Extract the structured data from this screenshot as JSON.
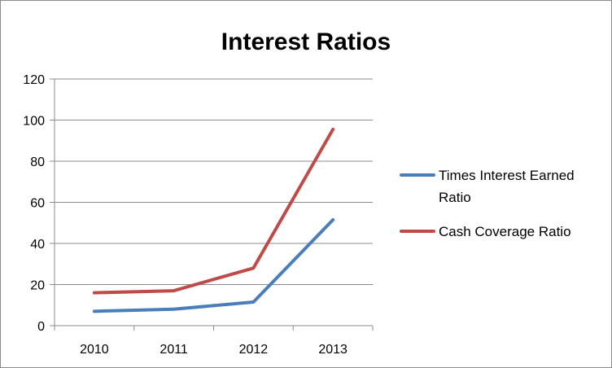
{
  "chart_data": {
    "type": "line",
    "title": "Interest Ratios",
    "xlabel": "",
    "ylabel": "",
    "categories": [
      "2010",
      "2011",
      "2012",
      "2013"
    ],
    "ylim": [
      0,
      120
    ],
    "yticks": [
      0,
      20,
      40,
      60,
      80,
      100,
      120
    ],
    "grid": true,
    "legend": "right",
    "series": [
      {
        "name": "Times Interest Earned Ratio",
        "legend_lines": [
          "Times Interest Earned",
          "Ratio"
        ],
        "color": "#4a7ebb",
        "values": [
          7,
          8,
          11.5,
          51.5
        ]
      },
      {
        "name": "Cash Coverage Ratio",
        "legend_lines": [
          "Cash Coverage Ratio"
        ],
        "color": "#be4b48",
        "values": [
          16,
          17,
          28,
          95.5
        ]
      }
    ]
  }
}
